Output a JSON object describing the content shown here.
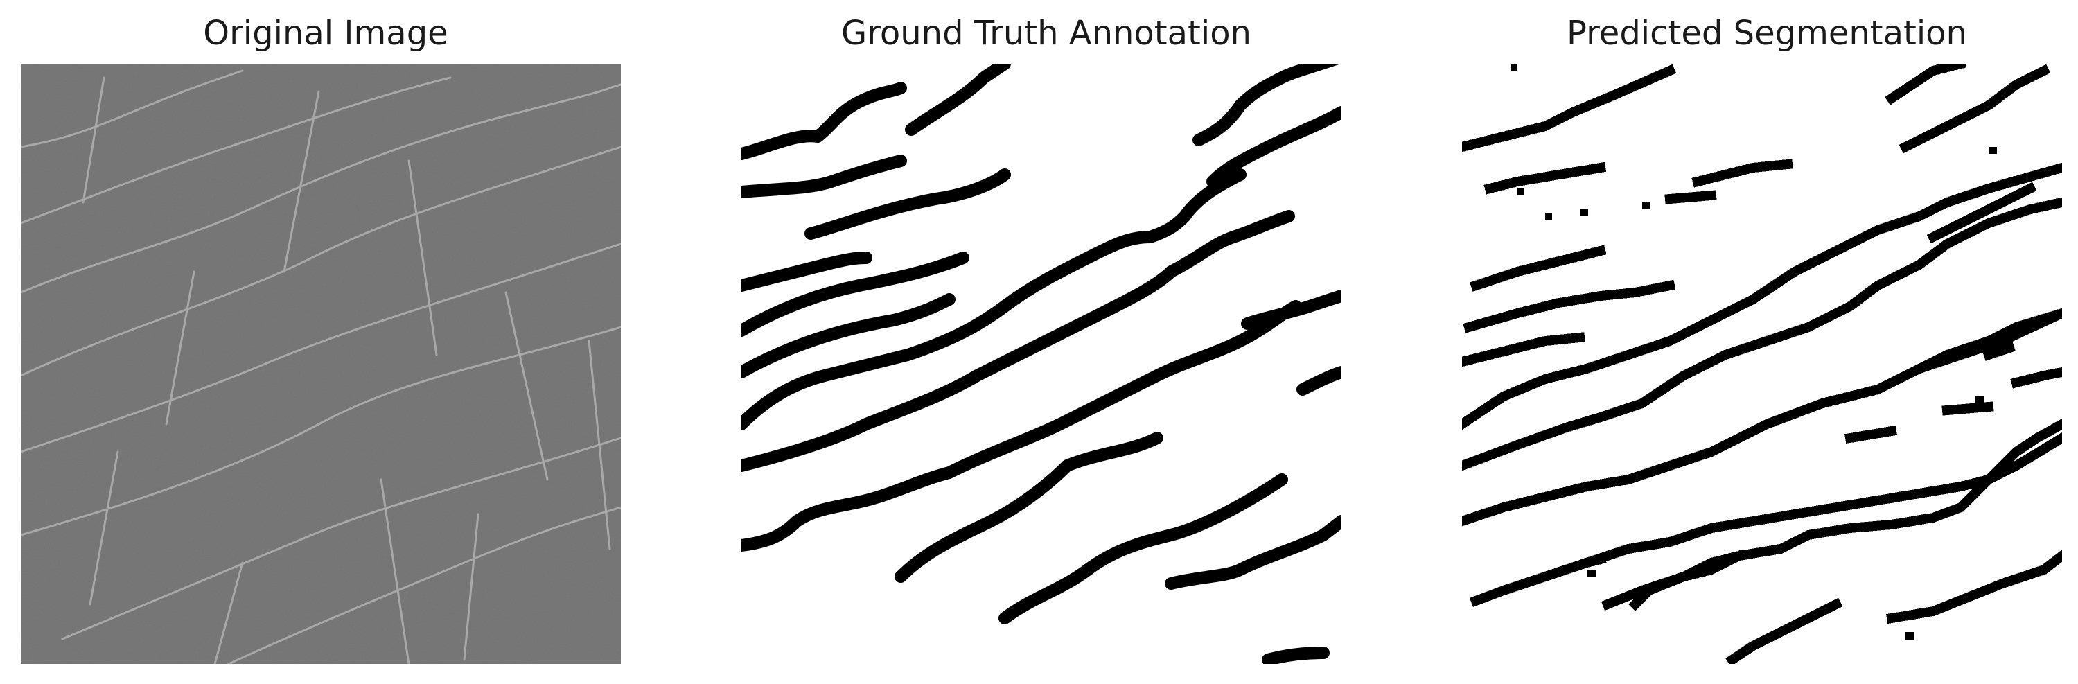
{
  "panels": [
    {
      "title": "Original Image"
    },
    {
      "title": "Ground Truth Annotation"
    },
    {
      "title": "Predicted Segmentation"
    }
  ],
  "colors": {
    "background": "#ffffff",
    "image_gray": "#7a7a7a",
    "crack_light": "#bdbdbd",
    "mask_foreground": "#000000",
    "mask_background": "#ffffff"
  }
}
